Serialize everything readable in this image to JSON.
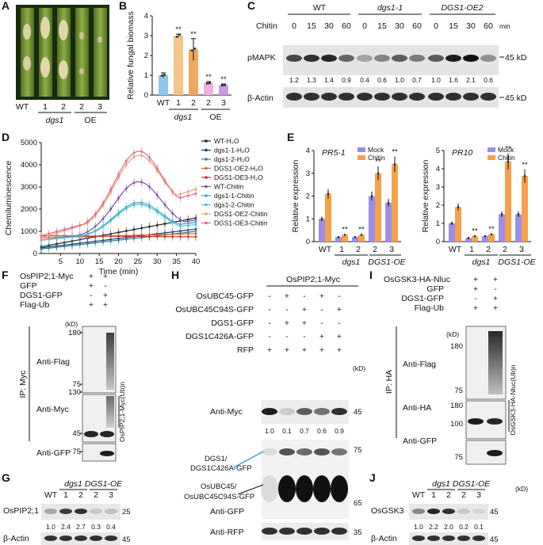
{
  "panels": {
    "A": "A",
    "B": "B",
    "C": "C",
    "D": "D",
    "E": "E",
    "F": "F",
    "G": "G",
    "H": "H",
    "I": "I",
    "J": "J"
  },
  "panel_a": {
    "labels": [
      "WT",
      "1",
      "2",
      "2",
      "3"
    ],
    "group1": "dgs1",
    "group2": "OE"
  },
  "chart_data": [
    {
      "id": "B",
      "type": "bar",
      "ylabel": "Relative fungal biomass",
      "categories": [
        "WT",
        "1",
        "2",
        "2",
        "3"
      ],
      "groups": [
        "",
        "dgs1",
        "dgs1",
        "OE",
        "OE"
      ],
      "values": [
        1.0,
        3.0,
        2.3,
        0.6,
        0.5
      ],
      "errors": [
        0.12,
        0.08,
        0.55,
        0.08,
        0.06
      ],
      "sig": [
        "",
        "**",
        "**",
        "**",
        "**"
      ],
      "ylim": [
        0,
        4
      ],
      "yticks": [
        "0",
        "1",
        "2",
        "3",
        "4"
      ],
      "colors": [
        "#8ec6f0",
        "#f5c48a",
        "#f0a860",
        "#f0b0e0",
        "#c89ae0"
      ]
    },
    {
      "id": "D",
      "type": "line",
      "ylabel": "Chemiluminescence",
      "xlabel": "Time (min)",
      "xticks": [
        "5",
        "10",
        "15",
        "20",
        "25",
        "30",
        "35",
        "40"
      ],
      "yticks": [
        "0",
        "1000",
        "2000",
        "3000",
        "4000",
        "5000"
      ],
      "ylim": [
        0,
        5000
      ],
      "xlim": [
        0,
        40
      ],
      "series": [
        {
          "name": "WT-H₂O",
          "color": "#222222",
          "dash": false,
          "y0": 300,
          "y1": 1600,
          "peak": 0
        },
        {
          "name": "dgs1-1-H₂O",
          "color": "#1e3a8a",
          "dash": false,
          "y0": 250,
          "y1": 1100,
          "peak": 0
        },
        {
          "name": "dgs1-2-H₂O",
          "color": "#2c8a8a",
          "dash": false,
          "y0": 200,
          "y1": 1000,
          "peak": 0
        },
        {
          "name": "DGS1-OE2-H₂O",
          "color": "#d8653a",
          "dash": false,
          "y0": 700,
          "y1": 900,
          "peak": 0
        },
        {
          "name": "DGS1-OE3-H₂O",
          "color": "#c0392b",
          "dash": false,
          "y0": 800,
          "y1": 750,
          "peak": 0
        },
        {
          "name": "WT-Chitin",
          "color": "#7b4fa8",
          "dash": false,
          "y0": 600,
          "y1": 1500,
          "peak": 2900
        },
        {
          "name": "dgs1-1-Chitin",
          "color": "#3aa5d6",
          "dash": false,
          "y0": 600,
          "y1": 1400,
          "peak": 2000
        },
        {
          "name": "dgs1-2-Chitin",
          "color": "#4fc3c7",
          "dash": false,
          "y0": 600,
          "y1": 1300,
          "peak": 1950
        },
        {
          "name": "DGS1-OE2-Chitin",
          "color": "#f0a080",
          "dash": false,
          "y0": 700,
          "y1": 2900,
          "peak": 3600
        },
        {
          "name": "DGS1-OE3-Chitin",
          "color": "#e06a8a",
          "dash": false,
          "y0": 800,
          "y1": 2700,
          "peak": 3900
        }
      ]
    },
    {
      "id": "E1",
      "type": "bar",
      "title": "PR5-1",
      "ylabel": "Relative expression",
      "categories": [
        "WT",
        "1",
        "2",
        "2",
        "3"
      ],
      "yticks": [
        "0",
        "1",
        "2",
        "3",
        "4"
      ],
      "ylim": [
        0,
        4
      ],
      "series": [
        {
          "name": "Mock",
          "color": "#9b8ee8",
          "values": [
            1.0,
            0.2,
            0.2,
            2.0,
            1.7
          ]
        },
        {
          "name": "Chitin",
          "color": "#f5a04a",
          "values": [
            2.1,
            0.3,
            0.3,
            3.0,
            3.4
          ]
        }
      ],
      "sig": [
        "",
        "**",
        "**",
        "**",
        "**"
      ]
    },
    {
      "id": "E2",
      "type": "bar",
      "title": "PR10",
      "ylabel": "Relative expression",
      "categories": [
        "WT",
        "1",
        "2",
        "2",
        "3"
      ],
      "yticks": [
        "0",
        "1",
        "2",
        "3",
        "4",
        "5"
      ],
      "ylim": [
        0,
        5
      ],
      "series": [
        {
          "name": "Mock",
          "color": "#9b8ee8",
          "values": [
            1.0,
            0.2,
            0.3,
            1.5,
            1.5
          ]
        },
        {
          "name": "Chitin",
          "color": "#f5a04a",
          "values": [
            1.9,
            0.3,
            0.4,
            4.4,
            3.6
          ]
        }
      ],
      "sig": [
        "",
        "**",
        "**",
        "**",
        "**"
      ]
    }
  ],
  "common": {
    "dgs1": "dgs1",
    "oe": "DGS1-OE",
    "mock": "Mock",
    "chitin": "Chitin",
    "kd": "(kD)",
    "plus": "+",
    "minus": "-"
  },
  "panel_c": {
    "groups": [
      "WT",
      "dgs1-1",
      "DGS1-OE2"
    ],
    "chitin_label": "Chitin",
    "times": [
      "0",
      "15",
      "30",
      "60"
    ],
    "unit": "min",
    "rows": [
      "pMAPK",
      "β-Actin"
    ],
    "markers": [
      "45 kD",
      "45 kD"
    ],
    "values": [
      "1.2",
      "1.3",
      "1.4",
      "0.9",
      "0.4",
      "0.6",
      "1.0",
      "0.7",
      "1.0",
      "1.6",
      "2.1",
      "0.6"
    ]
  },
  "panel_f": {
    "conditions": [
      "OsPIP2;1-Myc",
      "GFP",
      "DGS1-GFP",
      "Flag-Ub"
    ],
    "ip": "IP: Myc",
    "rows": [
      "Anti-Flag",
      "Anti-Myc",
      "Anti-GFP"
    ],
    "mw": [
      "180",
      "75",
      "130",
      "45",
      "75"
    ],
    "side_label": "OsPIP2;1-Myc(Ub)n"
  },
  "panel_g": {
    "rows": [
      "OsPIP2;1",
      "β-Actin"
    ],
    "lanes": [
      "WT",
      "1",
      "2",
      "2",
      "3"
    ],
    "mw": [
      "25",
      "45"
    ],
    "values": [
      "1.0",
      "2.4",
      "2.7",
      "0.3",
      "0.4"
    ]
  },
  "panel_h": {
    "title": "OsPIP2;1-Myc",
    "conditions": [
      "OsUBC45-GFP",
      "OsUBC45C94S-GFP",
      "DGS1-GFP",
      "DGS1C426A-GFP",
      "RFP"
    ],
    "rows": [
      "Anti-Myc",
      "Anti-GFP",
      "Anti-RFP"
    ],
    "mw": [
      "45",
      "75",
      "65",
      "35"
    ],
    "values": [
      "1.0",
      "0.1",
      "0.7",
      "0.6",
      "0.9"
    ],
    "arrow1": "DGS1/",
    "arrow1b": "DGS1C426A-GFP",
    "arrow2": "OsUBC45/",
    "arrow2b": "OsUBC45C94S-GFP"
  },
  "panel_i": {
    "conditions": [
      "OsGSK3-HA-Nluc",
      "GFP",
      "DGS1-GFP",
      "Flag-Ub"
    ],
    "ip": "IP: HA",
    "rows": [
      "Anti-Flag",
      "Anti-HA",
      "Anti-GFP"
    ],
    "mw": [
      "180",
      "75",
      "180",
      "100",
      "75"
    ],
    "side_label": "OsGSK3-HA-Nluc(Ub)n"
  },
  "panel_j": {
    "rows": [
      "OsGSK3",
      "β-Actin"
    ],
    "lanes": [
      "WT",
      "1",
      "2",
      "2",
      "3"
    ],
    "mw": [
      "45",
      "45"
    ],
    "values": [
      "1.0",
      "2.2",
      "2.0",
      "0.2",
      "0.1"
    ]
  }
}
